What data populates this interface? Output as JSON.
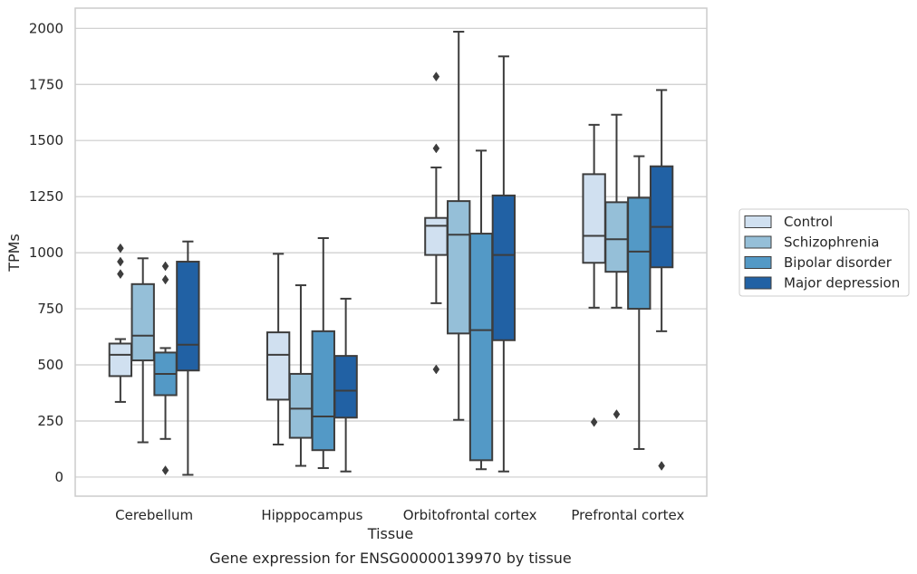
{
  "chart_data": {
    "type": "box",
    "caption": "Gene expression for ENSG00000139970 by tissue",
    "xlabel": "Tissue",
    "ylabel": "TPMs",
    "ylim": [
      -85,
      2090
    ],
    "yticks": [
      0,
      250,
      500,
      750,
      1000,
      1250,
      1500,
      1750,
      2000
    ],
    "grid": "horizontal",
    "legend_position": "right",
    "categories": [
      "Cerebellum",
      "Hipppocampus",
      "Orbitofrontal cortex",
      "Prefrontal cortex"
    ],
    "series": [
      {
        "name": "Control",
        "color": "#d0e0f0",
        "boxes": [
          {
            "whisker_low": 335,
            "q1": 450,
            "median": 545,
            "q3": 595,
            "whisker_high": 615,
            "outliers": [
              905,
              960,
              1020
            ]
          },
          {
            "whisker_low": 145,
            "q1": 345,
            "median": 545,
            "q3": 645,
            "whisker_high": 995,
            "outliers": []
          },
          {
            "whisker_low": 775,
            "q1": 990,
            "median": 1120,
            "q3": 1155,
            "whisker_high": 1380,
            "outliers": [
              480,
              1465,
              1785
            ]
          },
          {
            "whisker_low": 755,
            "q1": 955,
            "median": 1075,
            "q3": 1350,
            "whisker_high": 1570,
            "outliers": [
              245
            ]
          }
        ]
      },
      {
        "name": "Schizophrenia",
        "color": "#95bfd8",
        "boxes": [
          {
            "whisker_low": 155,
            "q1": 520,
            "median": 630,
            "q3": 860,
            "whisker_high": 975,
            "outliers": []
          },
          {
            "whisker_low": 50,
            "q1": 175,
            "median": 305,
            "q3": 460,
            "whisker_high": 855,
            "outliers": []
          },
          {
            "whisker_low": 255,
            "q1": 640,
            "median": 1080,
            "q3": 1230,
            "whisker_high": 1985,
            "outliers": []
          },
          {
            "whisker_low": 755,
            "q1": 915,
            "median": 1060,
            "q3": 1225,
            "whisker_high": 1615,
            "outliers": [
              280
            ]
          }
        ]
      },
      {
        "name": "Bipolar disorder",
        "color": "#5399c6",
        "boxes": [
          {
            "whisker_low": 170,
            "q1": 365,
            "median": 460,
            "q3": 555,
            "whisker_high": 575,
            "outliers": [
              30,
              880,
              940
            ]
          },
          {
            "whisker_low": 40,
            "q1": 120,
            "median": 270,
            "q3": 650,
            "whisker_high": 1065,
            "outliers": []
          },
          {
            "whisker_low": 35,
            "q1": 75,
            "median": 655,
            "q3": 1085,
            "whisker_high": 1455,
            "outliers": []
          },
          {
            "whisker_low": 125,
            "q1": 750,
            "median": 1005,
            "q3": 1245,
            "whisker_high": 1430,
            "outliers": []
          }
        ]
      },
      {
        "name": "Major depression",
        "color": "#2161a4",
        "boxes": [
          {
            "whisker_low": 10,
            "q1": 475,
            "median": 590,
            "q3": 960,
            "whisker_high": 1050,
            "outliers": []
          },
          {
            "whisker_low": 25,
            "q1": 265,
            "median": 385,
            "q3": 540,
            "whisker_high": 795,
            "outliers": []
          },
          {
            "whisker_low": 25,
            "q1": 610,
            "median": 990,
            "q3": 1255,
            "whisker_high": 1875,
            "outliers": []
          },
          {
            "whisker_low": 650,
            "q1": 935,
            "median": 1115,
            "q3": 1385,
            "whisker_high": 1725,
            "outliers": [
              50
            ]
          }
        ]
      }
    ]
  }
}
